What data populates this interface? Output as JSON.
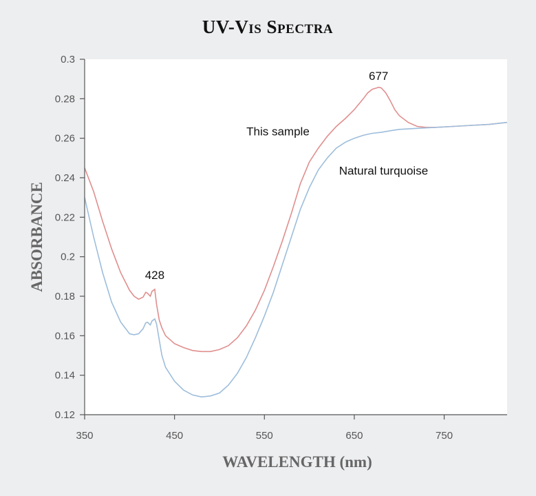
{
  "chart_data": {
    "type": "line",
    "title": "UV-Vis Spectra",
    "xlabel": "WAVELENGTH (nm)",
    "ylabel": "ABSORBANCE",
    "xlim": [
      350,
      820
    ],
    "ylim": [
      0.12,
      0.3
    ],
    "xticks": [
      350,
      450,
      550,
      650,
      750
    ],
    "xtick_labels": [
      "350",
      "450",
      "550",
      "650",
      "750"
    ],
    "yticks": [
      0.12,
      0.14,
      0.16,
      0.18,
      0.2,
      0.22,
      0.24,
      0.26,
      0.28,
      0.3
    ],
    "ytick_labels": [
      "0.12",
      "0.14",
      "0.16",
      "0.18",
      "0.2",
      "0.22",
      "0.24",
      "0.26",
      "0.28",
      "0.3"
    ],
    "grid": false,
    "legend": "none",
    "series": [
      {
        "name": "This sample",
        "color": "#e08e8e",
        "label": {
          "x": 530,
          "y": 0.2615
        },
        "x": [
          350,
          360,
          370,
          380,
          390,
          400,
          405,
          410,
          415,
          418,
          420,
          423,
          425,
          428,
          430,
          433,
          436,
          440,
          450,
          460,
          470,
          480,
          490,
          500,
          510,
          520,
          530,
          540,
          550,
          560,
          570,
          580,
          590,
          600,
          610,
          620,
          630,
          640,
          650,
          660,
          665,
          670,
          675,
          677,
          680,
          685,
          690,
          695,
          700,
          710,
          720,
          730,
          740,
          760,
          780,
          800,
          820
        ],
        "y": [
          0.245,
          0.233,
          0.218,
          0.204,
          0.192,
          0.183,
          0.18,
          0.1785,
          0.1795,
          0.182,
          0.1815,
          0.18,
          0.1825,
          0.1835,
          0.176,
          0.168,
          0.164,
          0.16,
          0.156,
          0.154,
          0.1525,
          0.152,
          0.152,
          0.153,
          0.155,
          0.159,
          0.165,
          0.173,
          0.183,
          0.195,
          0.208,
          0.222,
          0.237,
          0.248,
          0.255,
          0.261,
          0.266,
          0.27,
          0.2745,
          0.28,
          0.283,
          0.2848,
          0.2855,
          0.2858,
          0.2855,
          0.283,
          0.279,
          0.2745,
          0.2715,
          0.268,
          0.266,
          0.2655,
          0.2655,
          0.266,
          0.2665,
          0.267,
          0.268
        ]
      },
      {
        "name": "Natural turquoise",
        "color": "#9dbddb",
        "label": {
          "x": 633,
          "y": 0.2415
        },
        "x": [
          350,
          360,
          370,
          380,
          390,
          400,
          405,
          410,
          415,
          418,
          420,
          423,
          425,
          428,
          430,
          433,
          436,
          440,
          450,
          460,
          470,
          480,
          490,
          500,
          510,
          520,
          530,
          540,
          550,
          560,
          570,
          580,
          590,
          600,
          610,
          620,
          630,
          640,
          650,
          660,
          670,
          680,
          690,
          700,
          720,
          740,
          760,
          780,
          800,
          820
        ],
        "y": [
          0.23,
          0.21,
          0.192,
          0.177,
          0.167,
          0.161,
          0.1605,
          0.161,
          0.1635,
          0.1665,
          0.1668,
          0.1655,
          0.1675,
          0.1685,
          0.166,
          0.158,
          0.15,
          0.144,
          0.137,
          0.1325,
          0.13,
          0.129,
          0.1295,
          0.131,
          0.135,
          0.141,
          0.149,
          0.159,
          0.17,
          0.182,
          0.196,
          0.21,
          0.224,
          0.235,
          0.244,
          0.25,
          0.255,
          0.258,
          0.26,
          0.2615,
          0.2625,
          0.263,
          0.2638,
          0.2645,
          0.265,
          0.2655,
          0.266,
          0.2665,
          0.267,
          0.268
        ]
      }
    ],
    "annotations": [
      {
        "text": "428",
        "x": 428,
        "y": 0.1887
      },
      {
        "text": "677",
        "x": 677,
        "y": 0.2895
      }
    ]
  }
}
